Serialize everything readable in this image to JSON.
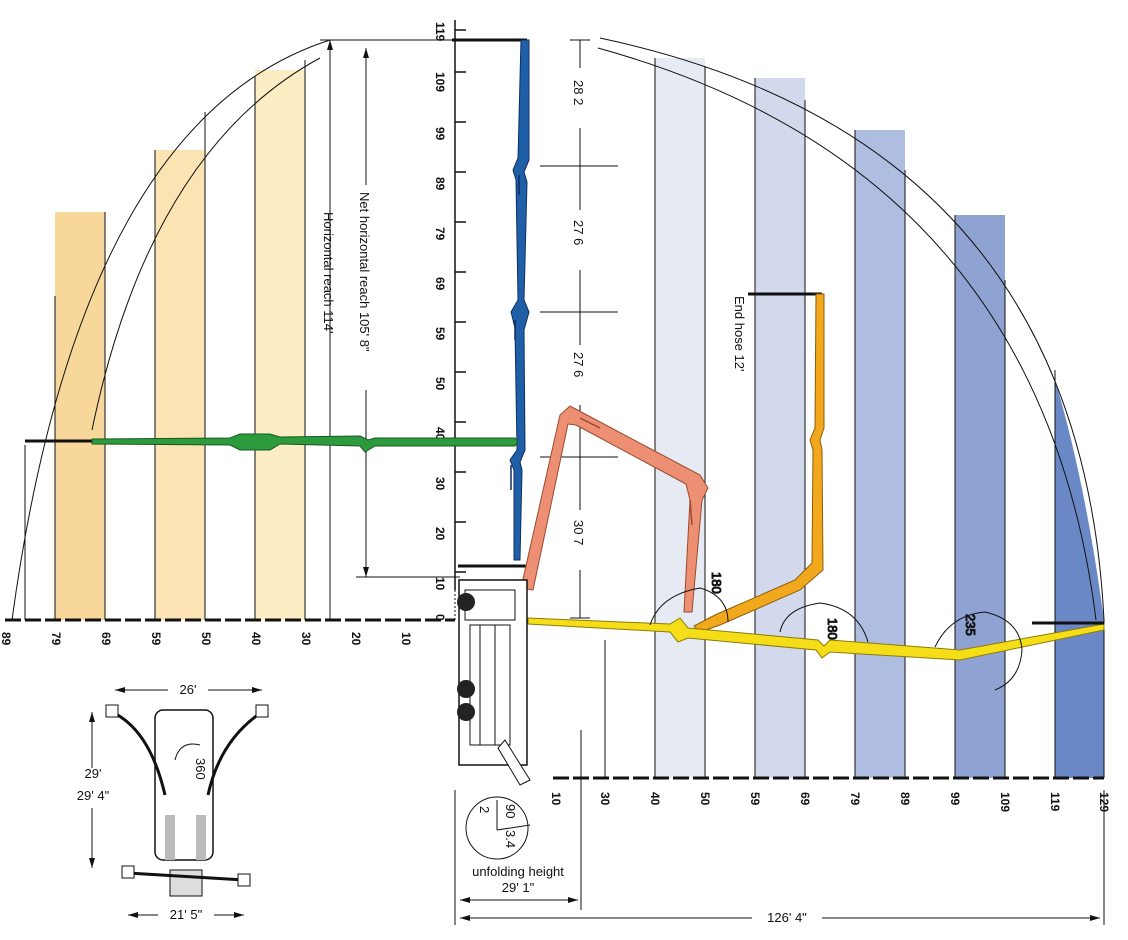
{
  "vertical_axis": {
    "ticks": [
      "10",
      "20",
      "30",
      "40",
      "50",
      "59",
      "69",
      "79",
      "89",
      "99",
      "109",
      "119"
    ],
    "zero_label": "0"
  },
  "left_axis": {
    "ticks": [
      "10",
      "20",
      "30",
      "40",
      "50",
      "59",
      "69",
      "79",
      "89"
    ]
  },
  "bottom_axis": {
    "ticks": [
      "10",
      "30",
      "40",
      "50",
      "59",
      "69",
      "79",
      "89",
      "99",
      "109",
      "119",
      "129"
    ]
  },
  "labels": {
    "horizontal_reach": "Horizontal reach 114'",
    "net_horizontal_reach": "Net horizontal reach 105' 8\"",
    "end_hose": "End hose 12'",
    "unfolding_height_title": "unfolding height",
    "unfolding_height_value": "29' 1\"",
    "total_reach": "126' 4\"",
    "section_1": "28 2",
    "section_2": "27 6",
    "section_3": "27 6",
    "section_4": "30 7",
    "angle_1": "180",
    "angle_2": "180",
    "angle_3": "235",
    "outrigger_top_width": "26'",
    "outrigger_length": "29' 4\"",
    "outrigger_bottom_width": "21' 5\"",
    "slew_angle": "360",
    "small_2": "2",
    "small_90": "90",
    "small_34": "3.4"
  },
  "colors": {
    "boom_blue": "#1f5fa8",
    "boom_green": "#2e9a3e",
    "boom_salmon": "#ec8f73",
    "boom_orange": "#f2a81d",
    "boom_yellow": "#f5de17",
    "band_orange_dark": "#f8d79a",
    "band_orange_mid": "#fbe3b3",
    "band_orange_light": "#fcedc4",
    "band_blue_1": "#e6eaf3",
    "band_blue_2": "#d2d9ec",
    "band_blue_3": "#aebde0",
    "band_blue_4": "#8fa3d3",
    "band_blue_5": "#6a88c6"
  }
}
